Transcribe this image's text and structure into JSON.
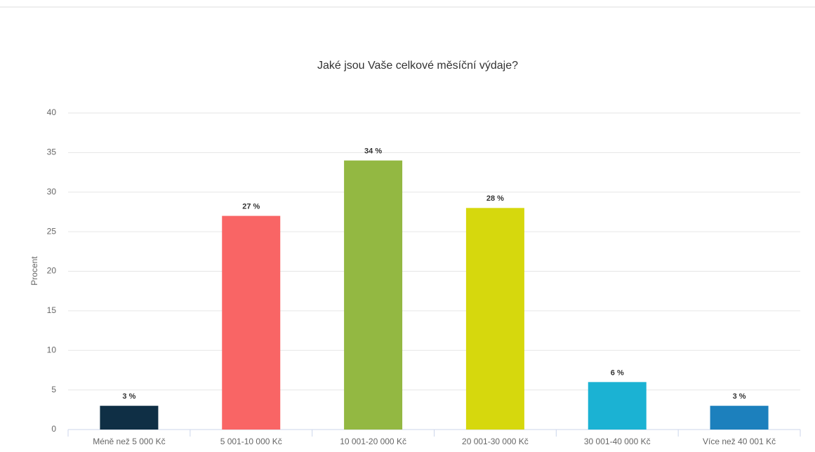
{
  "chart_data": {
    "type": "bar",
    "title": "Jaké jsou Vaše celkové měsíční výdaje?",
    "y_label": "Procent",
    "categories": [
      "Méně než 5 000 Kč",
      "5 001-10 000 Kč",
      "10 001-20 000 Kč",
      "20 001-30 000 Kč",
      "30 001-40 000 Kč",
      "Více než 40 001 Kč"
    ],
    "values": [
      3,
      27,
      34,
      28,
      6,
      3
    ],
    "value_labels": [
      "3 %",
      "27 %",
      "34 %",
      "28 %",
      "6 %",
      "3 %"
    ],
    "colors": [
      "#0f2f45",
      "#f96565",
      "#93b842",
      "#d6d80d",
      "#1bb2d3",
      "#1c80bd"
    ],
    "ylim": [
      0,
      40
    ],
    "yticks": [
      0,
      5,
      10,
      15,
      20,
      25,
      30,
      35,
      40
    ],
    "grid": true
  }
}
